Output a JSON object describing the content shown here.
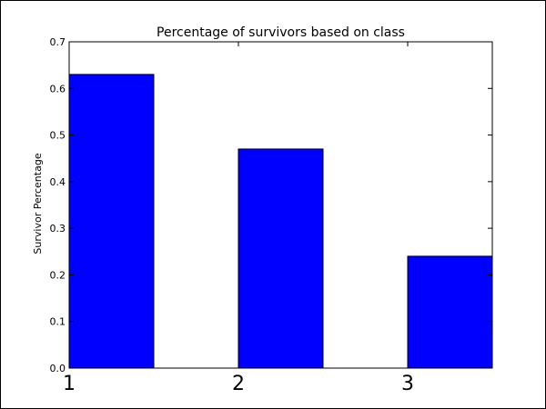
{
  "chart_data": {
    "type": "bar",
    "title": "Percentage of survivors based on class",
    "xlabel": "",
    "ylabel": "Survivor Percentage",
    "categories": [
      "1",
      "2",
      "3"
    ],
    "x": [
      1,
      2,
      3
    ],
    "values": [
      0.63,
      0.47,
      0.24
    ],
    "ylim": [
      0,
      0.7
    ],
    "xlim": [
      1,
      3.5
    ],
    "yticks": [
      0.0,
      0.1,
      0.2,
      0.3,
      0.4,
      0.5,
      0.6,
      0.7
    ],
    "ytick_labels": [
      "0.0",
      "0.1",
      "0.2",
      "0.3",
      "0.4",
      "0.5",
      "0.6",
      "0.7"
    ],
    "grid": false,
    "legend": "none",
    "bar_color": "#0000ff",
    "bar_edge_color": "#000000"
  }
}
